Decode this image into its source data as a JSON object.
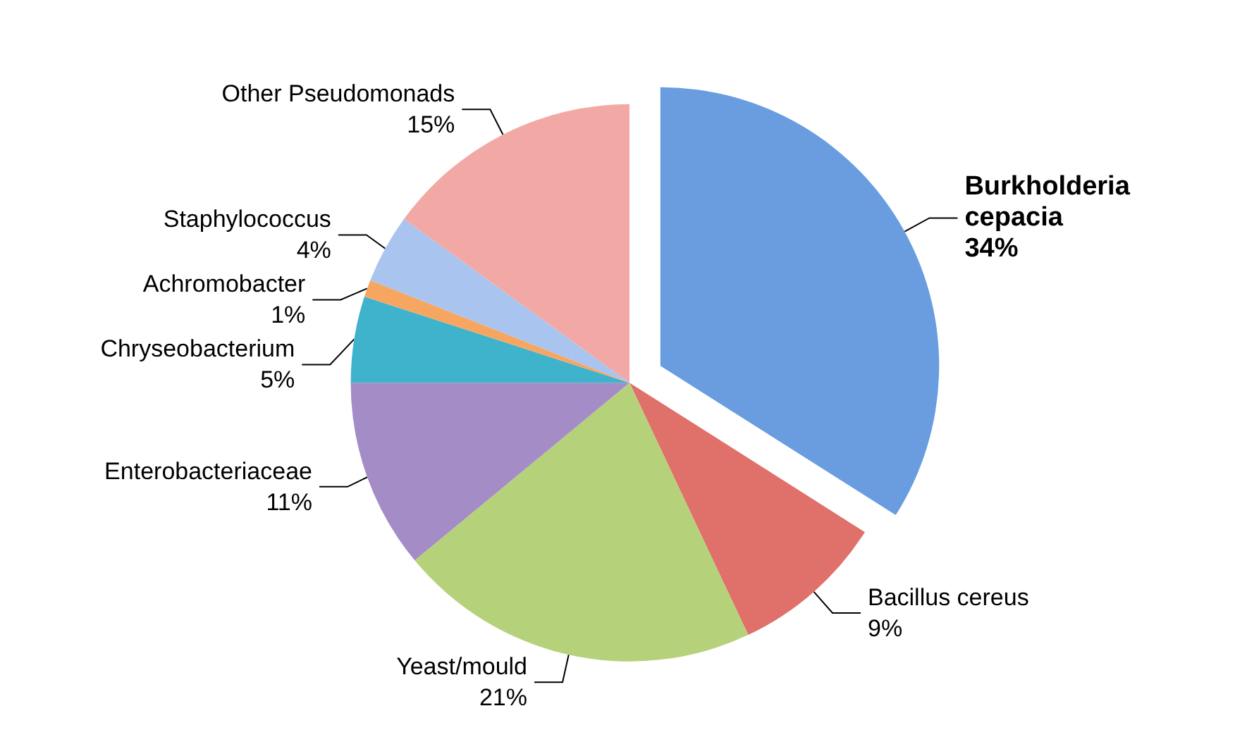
{
  "chart_data": {
    "type": "pie",
    "categories": [
      "Burkholderia cepacia",
      "Bacillus cereus",
      "Yeast/mould",
      "Enterobacteriaceae",
      "Chryseobacterium",
      "Achromobacter",
      "Staphylococcus",
      "Other Pseudomonads"
    ],
    "values": [
      34,
      9,
      21,
      11,
      5,
      1,
      4,
      15
    ],
    "colors": [
      "#6a9de0",
      "#e0706a",
      "#b5d27a",
      "#a48cc6",
      "#3fb3cc",
      "#f6a660",
      "#a9c4ee",
      "#f2a9a6"
    ],
    "value_labels": [
      "34%",
      "9%",
      "21%",
      "11%",
      "5%",
      "1%",
      "4%",
      "15%"
    ],
    "legend": false
  }
}
